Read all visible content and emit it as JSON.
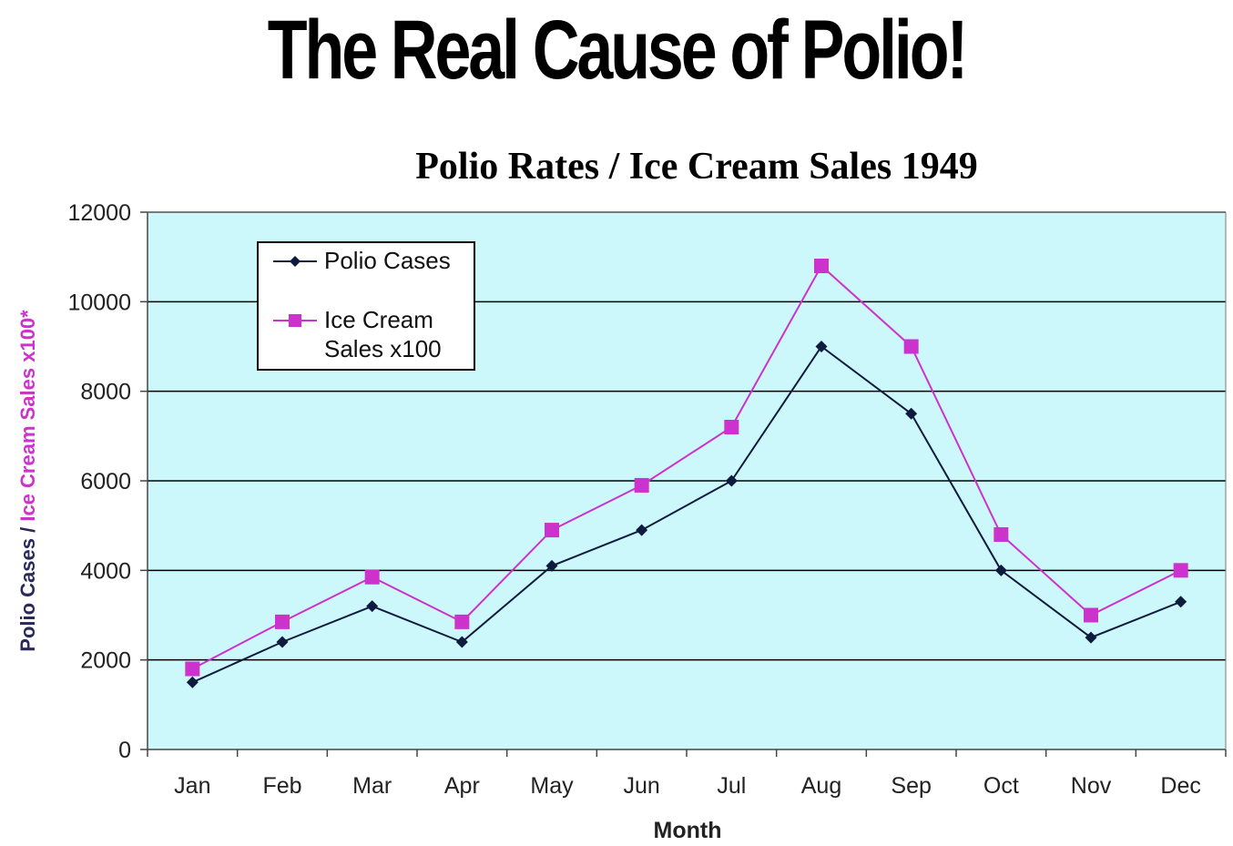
{
  "headline": "The Real Cause of Polio!",
  "colors": {
    "plot_background": "#ccf8fb",
    "polio": "#0d1b3e",
    "ice_cream": "#cc33cc",
    "gridline": "#000000"
  },
  "chart_data": {
    "type": "line",
    "title": "Polio Rates / Ice Cream Sales 1949",
    "xlabel": "Month",
    "ylabel_part1": "Polio Cases / ",
    "ylabel_part2": "Ice Cream Sales x100*",
    "ylim": [
      0,
      12000
    ],
    "yticks": [
      0,
      2000,
      4000,
      6000,
      8000,
      10000,
      12000
    ],
    "grid": true,
    "legend_position": "top-left",
    "categories": [
      "Jan",
      "Feb",
      "Mar",
      "Apr",
      "May",
      "Jun",
      "Jul",
      "Aug",
      "Sep",
      "Oct",
      "Nov",
      "Dec"
    ],
    "series": [
      {
        "name": "Polio Cases",
        "marker": "diamond",
        "values": [
          1500,
          2400,
          3200,
          2400,
          4100,
          4900,
          6000,
          9000,
          7500,
          4000,
          2500,
          3300
        ]
      },
      {
        "name": "Ice Cream Sales x100",
        "legend_lines": [
          "Ice Cream",
          "Sales x100"
        ],
        "marker": "square",
        "values": [
          1800,
          2850,
          3850,
          2850,
          4900,
          5900,
          7200,
          10800,
          9000,
          4800,
          3000,
          4000
        ]
      }
    ]
  }
}
